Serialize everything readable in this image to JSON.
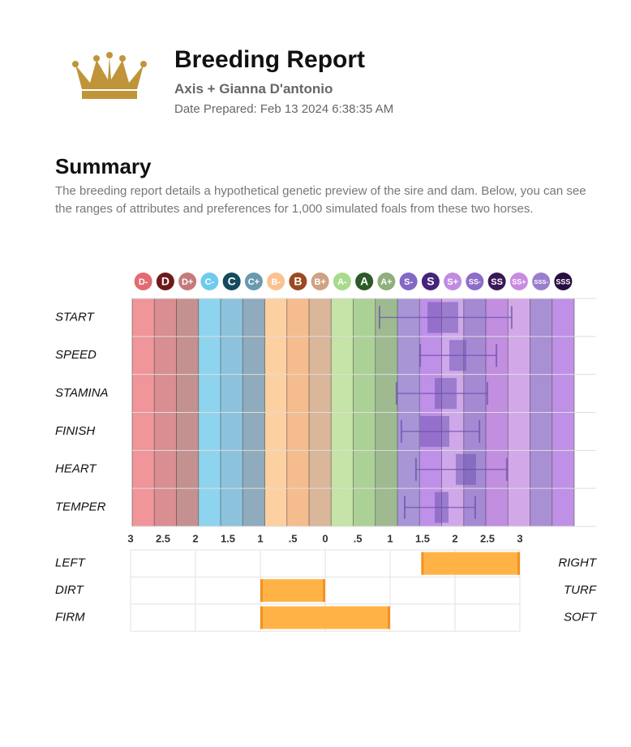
{
  "header": {
    "title": "Breeding Report",
    "subtitle": "Axis + Gianna D'antonio",
    "date": "Date Prepared: Feb 13 2024 6:38:35 AM"
  },
  "summary": {
    "heading": "Summary",
    "text": "The breeding report details a hypothetical genetic preview of the sire and dam. Below, you can see the ranges of attributes and preferences for 1,000 simulated foals from these two horses."
  },
  "chart_data": [
    {
      "type": "box",
      "grades": [
        "D-",
        "D",
        "D+",
        "C-",
        "C",
        "C+",
        "B-",
        "B",
        "B+",
        "A-",
        "A",
        "A+",
        "S-",
        "S",
        "S+",
        "SS-",
        "SS",
        "SS+",
        "SSS-",
        "SSS"
      ],
      "grade_colors": [
        "#f0959a",
        "#d98e91",
        "#c49090",
        "#8fd4ee",
        "#8dc2dc",
        "#8fabbd",
        "#fdd0a2",
        "#f5bd8e",
        "#dab69b",
        "#c6e3a8",
        "#acd197",
        "#9fba90",
        "#a795d6",
        "#bf90e8",
        "#cfa8ea",
        "#a58ad3",
        "#c18ee0",
        "#d3a8e8",
        "#a98fd4",
        "#c090e6"
      ],
      "badge_colors": [
        "#e46a72",
        "#6e1a1c",
        "#c47a7c",
        "#6fcbed",
        "#164a5c",
        "#6a9ab0",
        "#fbc290",
        "#9a4a22",
        "#cfa283",
        "#a8dc8c",
        "#2c5a28",
        "#8eb07c",
        "#8468c6",
        "#46247a",
        "#c08ce2",
        "#8e6cc8",
        "#3a1858",
        "#c98ae0",
        "#9a7ecc",
        "#2a0e42"
      ],
      "xlim": [
        0,
        20
      ],
      "categories": [
        "START",
        "SPEED",
        "STAMINA",
        "FINISH",
        "HEART",
        "TEMPER"
      ],
      "boxes": [
        {
          "min": 11.19,
          "q1": 13.36,
          "q3": 14.75,
          "max": 17.17
        },
        {
          "min": 13.03,
          "q1": 14.35,
          "q3": 15.12,
          "max": 16.48
        },
        {
          "min": 11.96,
          "q1": 13.69,
          "q3": 14.68,
          "max": 16.07
        },
        {
          "min": 12.18,
          "q1": 13.03,
          "q3": 14.35,
          "max": 15.71
        },
        {
          "min": 12.84,
          "q1": 14.64,
          "q3": 15.56,
          "max": 16.95
        },
        {
          "min": 12.33,
          "q1": 13.69,
          "q3": 14.31,
          "max": 15.52
        }
      ],
      "color": "#6a4fb0"
    },
    {
      "type": "range",
      "xlim": [
        -3,
        3
      ],
      "xticks": [
        {
          "value": -3,
          "label": "3"
        },
        {
          "value": -2.5,
          "label": "2.5"
        },
        {
          "value": -2,
          "label": "2"
        },
        {
          "value": -1.5,
          "label": "1.5"
        },
        {
          "value": -1,
          "label": "1"
        },
        {
          "value": -0.5,
          "label": ".5"
        },
        0,
        {
          "value": 0.5,
          "label": ".5"
        },
        1,
        1.5,
        2,
        2.5,
        3
      ],
      "rows": [
        {
          "left": "LEFT",
          "right": "RIGHT",
          "values": [
            1.48,
            3
          ]
        },
        {
          "left": "DIRT",
          "right": "TURF",
          "values": [
            -1,
            0
          ]
        },
        {
          "left": "FIRM",
          "right": "SOFT",
          "values": [
            -1,
            1
          ]
        }
      ],
      "color": "#ffb347",
      "edge_color": "#f5921e"
    }
  ]
}
